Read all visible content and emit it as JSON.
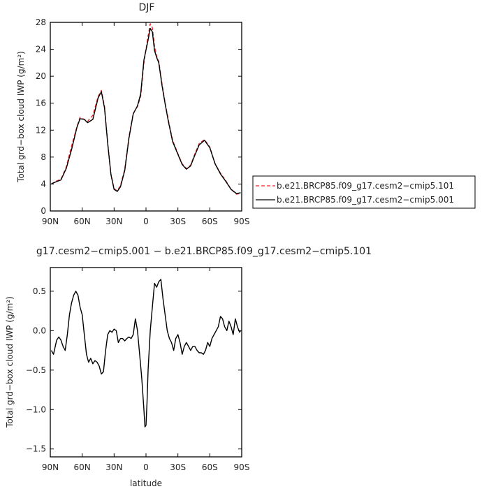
{
  "chart_data": [
    {
      "type": "line",
      "title": "DJF",
      "xlabel": "",
      "ylabel": "Total grd−box cloud IWP (g/m²)",
      "xlim": [
        90,
        -90
      ],
      "ylim": [
        0,
        28
      ],
      "x_ticks": [
        90,
        60,
        30,
        0,
        -30,
        -60,
        -90
      ],
      "x_tick_labels": [
        "90N",
        "60N",
        "30N",
        "0",
        "30S",
        "60S",
        "90S"
      ],
      "y_ticks": [
        0,
        4,
        8,
        12,
        16,
        20,
        24,
        28
      ],
      "y_tick_labels": [
        "0",
        "4",
        "8",
        "12",
        "16",
        "20",
        "24",
        "28"
      ],
      "legend_position": "right",
      "series": [
        {
          "name": "b.e21.BRCP85.f09_g17.cesm2−cmip5.101",
          "color": "#e8262a",
          "dash": "dashed",
          "x": [
            89,
            85,
            80,
            75,
            70,
            65,
            62,
            58,
            55,
            50,
            45,
            42,
            39,
            36,
            33,
            30,
            27,
            24,
            20,
            16,
            12,
            8,
            5,
            2,
            -2,
            -4,
            -6,
            -8,
            -10,
            -12,
            -15,
            -18,
            -21,
            -25,
            -30,
            -34,
            -38,
            -42,
            -46,
            -50,
            -55,
            -60,
            -65,
            -70,
            -75,
            -80,
            -85,
            -89
          ],
          "y": [
            4.0,
            4.4,
            4.7,
            6.5,
            9.6,
            12.5,
            13.9,
            13.6,
            13.3,
            14.2,
            17.0,
            17.9,
            15.5,
            10.0,
            5.5,
            3.3,
            3.0,
            3.8,
            6.2,
            11.0,
            14.5,
            15.5,
            17.0,
            22.0,
            26.0,
            27.8,
            27.2,
            24.5,
            23.0,
            22.2,
            19.0,
            16.0,
            13.5,
            10.5,
            8.5,
            7.0,
            6.3,
            6.8,
            8.5,
            10.0,
            10.6,
            9.5,
            7.0,
            5.6,
            4.5,
            3.2,
            2.5,
            2.6
          ]
        },
        {
          "name": "b.e21.BRCP85.f09_g17.cesm2−cmip5.001",
          "color": "#000000",
          "dash": "solid",
          "x": [
            89,
            85,
            80,
            75,
            70,
            65,
            62,
            58,
            55,
            50,
            45,
            42,
            39,
            36,
            33,
            30,
            27,
            24,
            20,
            16,
            12,
            8,
            5,
            2,
            -2,
            -4,
            -6,
            -8,
            -10,
            -12,
            -15,
            -18,
            -21,
            -25,
            -30,
            -34,
            -38,
            -42,
            -46,
            -50,
            -55,
            -60,
            -65,
            -70,
            -75,
            -80,
            -85,
            -89
          ],
          "y": [
            4.0,
            4.3,
            4.6,
            6.3,
            9.1,
            12.4,
            13.7,
            13.6,
            13.1,
            13.6,
            16.8,
            17.7,
            15.3,
            10.0,
            5.4,
            3.2,
            2.9,
            3.6,
            6.0,
            10.8,
            14.4,
            15.6,
            17.4,
            22.4,
            25.4,
            27.1,
            26.6,
            23.8,
            22.8,
            22.0,
            18.7,
            15.9,
            13.3,
            10.3,
            8.4,
            6.9,
            6.2,
            6.7,
            8.3,
            9.8,
            10.5,
            9.4,
            7.0,
            5.5,
            4.4,
            3.2,
            2.6,
            2.7
          ]
        }
      ]
    },
    {
      "type": "line",
      "title": "g17.cesm2−cmip5.001 − b.e21.BRCP85.f09_g17.cesm2−cmip5.101",
      "xlabel": "latitude",
      "ylabel": "Total grd−box cloud IWP (g/m²)",
      "xlim": [
        90,
        -90
      ],
      "ylim": [
        -1.6,
        0.8
      ],
      "x_ticks": [
        90,
        60,
        30,
        0,
        -30,
        -60,
        -90
      ],
      "x_tick_labels": [
        "90N",
        "60N",
        "30N",
        "0",
        "30S",
        "60S",
        "90S"
      ],
      "y_ticks": [
        0.5,
        0.0,
        -0.5,
        -1.0,
        -1.5
      ],
      "y_tick_labels": [
        "0.5",
        "0.0",
        "−0.5",
        "−1.0",
        "−1.5"
      ],
      "series": [
        {
          "color": "#000000",
          "dash": "solid",
          "x": [
            89,
            87,
            84,
            82,
            80,
            78,
            76,
            74,
            72,
            70,
            68,
            66,
            64,
            62,
            60,
            58,
            56,
            54,
            52,
            50,
            48,
            46,
            44,
            42,
            40,
            38,
            36,
            34,
            32,
            30,
            28,
            26,
            24,
            22,
            20,
            18,
            16,
            14,
            12,
            10,
            8,
            6,
            4,
            2,
            1,
            0,
            -1,
            -2,
            -4,
            -6,
            -8,
            -10,
            -12,
            -14,
            -16,
            -18,
            -20,
            -22,
            -24,
            -26,
            -28,
            -30,
            -32,
            -34,
            -36,
            -38,
            -40,
            -42,
            -44,
            -46,
            -48,
            -50,
            -52,
            -54,
            -56,
            -58,
            -60,
            -62,
            -64,
            -66,
            -68,
            -70,
            -72,
            -74,
            -76,
            -78,
            -80,
            -82,
            -84,
            -86,
            -88,
            -89
          ],
          "y": [
            -0.25,
            -0.3,
            -0.12,
            -0.08,
            -0.12,
            -0.2,
            -0.25,
            -0.05,
            0.2,
            0.35,
            0.45,
            0.5,
            0.45,
            0.3,
            0.2,
            -0.05,
            -0.3,
            -0.4,
            -0.35,
            -0.42,
            -0.38,
            -0.4,
            -0.45,
            -0.55,
            -0.52,
            -0.25,
            -0.05,
            0.0,
            -0.02,
            0.02,
            0.0,
            -0.15,
            -0.1,
            -0.1,
            -0.13,
            -0.1,
            -0.08,
            -0.1,
            -0.05,
            0.15,
            0.0,
            -0.3,
            -0.6,
            -1.0,
            -1.22,
            -1.2,
            -0.9,
            -0.5,
            0.0,
            0.3,
            0.6,
            0.55,
            0.62,
            0.65,
            0.4,
            0.2,
            0.0,
            -0.1,
            -0.15,
            -0.25,
            -0.1,
            -0.05,
            -0.15,
            -0.3,
            -0.2,
            -0.15,
            -0.2,
            -0.25,
            -0.2,
            -0.2,
            -0.25,
            -0.28,
            -0.28,
            -0.3,
            -0.25,
            -0.15,
            -0.2,
            -0.1,
            -0.05,
            0.0,
            0.05,
            0.18,
            0.15,
            0.05,
            0.0,
            0.12,
            0.05,
            -0.05,
            0.15,
            0.05,
            -0.02,
            0.0
          ]
        }
      ]
    }
  ]
}
